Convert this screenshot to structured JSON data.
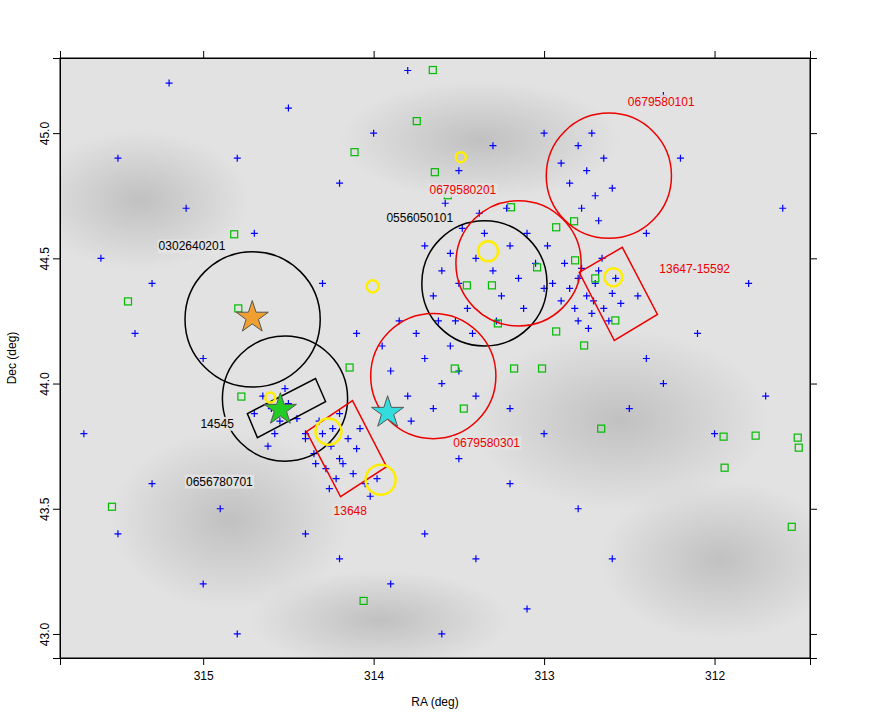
{
  "chart_data": {
    "type": "scatter",
    "x_label": "RA (deg)",
    "y_label": "Dec (deg)",
    "xlim": [
      315.84,
      311.44
    ],
    "ylim": [
      42.904,
      45.3
    ],
    "xticks": [
      315,
      314,
      313,
      312
    ],
    "yticks": [
      {
        "value": 43,
        "label": "43.0"
      },
      {
        "value": 43.5,
        "label": "43.5"
      },
      {
        "value": 44,
        "label": "44.0"
      },
      {
        "value": 44.5,
        "label": "44.5"
      },
      {
        "value": 45,
        "label": "45.0"
      }
    ],
    "series": [
      {
        "type": "scatter",
        "marker": "plus",
        "color": "#0000ff",
        "x": [
          312.7,
          312.75,
          312.8,
          312.65,
          312.72,
          312.85,
          312.6,
          312.78,
          312.68,
          312.9,
          312.62,
          312.74,
          312.82,
          312.55,
          312.88,
          312.95,
          312.66,
          312.71,
          312.58,
          312.8,
          314.3,
          314.25,
          314.2,
          314.35,
          314.28,
          314.15,
          314.22,
          314.32,
          314.18,
          314.26,
          314.1,
          314.4,
          314.24,
          314.12,
          314.05,
          314.02,
          313.98,
          314.34,
          314.2,
          314.08,
          314.6,
          314.55,
          314.5,
          314.65,
          314.58,
          314.45,
          314.7,
          314.52,
          314.62,
          314.4,
          313.4,
          313.3,
          313.5,
          313.2,
          313.35,
          313.45,
          313.25,
          313.55,
          313.15,
          313.38,
          313.6,
          313.28,
          313.1,
          313.48,
          313.05,
          313.22,
          313.65,
          313.42,
          313.0,
          313.33,
          313.58,
          313.7,
          313.12,
          312.98,
          313.52,
          312.75,
          312.7,
          312.8,
          312.65,
          312.85,
          312.6,
          312.78,
          312.9,
          312.72,
          312.68,
          313.7,
          313.6,
          313.8,
          313.75,
          313.55,
          313.9,
          313.65,
          313.85,
          313.5,
          313.95,
          313.78,
          313.62,
          315.2,
          315.5,
          315.1,
          315.6,
          315.4,
          315.7,
          315.3,
          315.5,
          315.0,
          314.8,
          314.5,
          314.2,
          314.0,
          313.8,
          314.3,
          314.1,
          313.7,
          313.9,
          313.6,
          313.4,
          313.2,
          313.0,
          312.8,
          312.5,
          312.3,
          312.1,
          312.4,
          312.2,
          311.8,
          311.6,
          312.6,
          313.1,
          314.7,
          315.0,
          314.9,
          313.5,
          312.0,
          311.7,
          312.3,
          313.0,
          313.3,
          313.5,
          314.4,
          314.2,
          315.3,
          312.45,
          312.4,
          313.2,
          313.4,
          314.8
        ],
        "values": [
          44.4,
          44.35,
          44.42,
          44.3,
          44.28,
          44.38,
          44.36,
          44.46,
          44.45,
          44.33,
          44.25,
          44.22,
          44.3,
          44.32,
          44.48,
          44.4,
          44.5,
          44.33,
          44.42,
          44.25,
          43.8,
          43.75,
          43.7,
          43.72,
          43.66,
          43.78,
          43.62,
          43.85,
          43.68,
          43.58,
          43.74,
          43.78,
          43.82,
          43.64,
          43.6,
          43.55,
          43.62,
          43.68,
          43.88,
          43.82,
          43.9,
          43.85,
          43.92,
          43.95,
          43.8,
          43.86,
          43.88,
          43.98,
          43.75,
          43.8,
          44.5,
          44.45,
          44.4,
          44.55,
          44.6,
          44.3,
          44.35,
          44.52,
          44.42,
          44.68,
          44.45,
          44.25,
          44.6,
          44.62,
          44.48,
          44.7,
          44.35,
          44.2,
          44.38,
          44.78,
          44.72,
          44.55,
          44.3,
          44.55,
          44.25,
          44.85,
          44.75,
          44.95,
          44.9,
          44.8,
          44.78,
          44.7,
          44.88,
          45.0,
          44.65,
          44.1,
          44.0,
          43.95,
          44.2,
          44.15,
          44.05,
          43.9,
          44.25,
          44.05,
          44.15,
          43.85,
          44.25,
          45.2,
          44.9,
          44.7,
          44.5,
          44.2,
          43.8,
          43.6,
          43.4,
          43.2,
          43.0,
          45.1,
          44.8,
          45.0,
          45.25,
          44.4,
          44.2,
          43.4,
          43.2,
          43.0,
          43.3,
          43.6,
          43.8,
          43.5,
          43.9,
          44.0,
          44.2,
          44.6,
          44.9,
          44.4,
          44.7,
          43.3,
          43.1,
          44.6,
          44.1,
          43.5,
          43.7,
          43.8,
          43.95,
          45.15,
          45.0,
          44.95,
          44.85,
          43.4,
          43.3,
          44.4,
          44.35,
          44.1,
          43.9,
          43.95,
          44.9
        ]
      },
      {
        "type": "scatter",
        "marker": "square",
        "color": "#00bb00",
        "x": [
          313.653,
          313.747,
          314.112,
          313.641,
          313.565,
          313.194,
          312.824,
          312.929,
          314.818,
          315.441,
          314.794,
          313.041,
          313.453,
          313.306,
          312.818,
          312.7,
          313.271,
          312.929,
          312.582,
          313.012,
          313.176,
          313.524,
          314.141,
          314.776,
          313.471,
          312.665,
          311.947,
          311.759,
          311.512,
          311.506,
          311.941,
          311.547,
          315.535,
          314.059,
          312.765
        ],
        "values": [
          45.252,
          45.048,
          44.924,
          44.844,
          44.752,
          44.704,
          44.648,
          44.624,
          44.596,
          44.328,
          44.3,
          44.464,
          44.392,
          44.392,
          44.492,
          44.42,
          44.24,
          44.208,
          44.252,
          44.06,
          44.06,
          44.06,
          44.064,
          43.948,
          43.9,
          43.82,
          43.788,
          43.792,
          43.784,
          43.744,
          43.664,
          43.428,
          43.508,
          43.132,
          44.152
        ]
      },
      {
        "type": "scatter",
        "marker": "star",
        "colors": [
          "#f0a030",
          "#22cc22",
          "#33dddd"
        ],
        "x": [
          314.712,
          314.547,
          313.918
        ],
        "values": [
          44.264,
          43.896,
          43.884
        ]
      },
      {
        "type": "circle",
        "color": "#ffee00",
        "x": [
          313.329,
          314.006,
          313.488,
          314.265,
          313.959,
          312.594,
          314.606
        ],
        "values": [
          44.528,
          44.388,
          44.904,
          43.808,
          43.616,
          44.424,
          43.944
        ],
        "radius": [
          0.04,
          0.024,
          0.02,
          0.052,
          0.06,
          0.036,
          0.02
        ]
      }
    ],
    "annotations": [
      {
        "type": "circle",
        "label": "0302640201",
        "color": "#000000",
        "x": 314.71,
        "y": 44.256,
        "radius": 0.27
      },
      {
        "type": "circle",
        "label": "0556050101",
        "color": "#000000",
        "x": 313.35,
        "y": 44.4,
        "radius": 0.25
      },
      {
        "type": "circle",
        "label": "0656780701",
        "color": "#000000",
        "x": 314.52,
        "y": 43.94,
        "radius": 0.25
      },
      {
        "type": "circle",
        "label": "0679580101",
        "color": "#ee0000",
        "x": 312.62,
        "y": 44.83,
        "radius": 0.25
      },
      {
        "type": "circle",
        "label": "0679580201",
        "color": "#ee0000",
        "x": 313.15,
        "y": 44.48,
        "radius": 0.25
      },
      {
        "type": "circle",
        "label": "0679580301",
        "color": "#ee0000",
        "x": 313.65,
        "y": 44.03,
        "radius": 0.25
      },
      {
        "type": "polygon",
        "label": "13647-15592",
        "color": "#ee0000",
        "x": [
          312.794,
          312.541,
          312.335,
          312.588
        ],
        "y": [
          44.444,
          44.544,
          44.276,
          44.172
        ]
      },
      {
        "type": "polygon",
        "label": "13648",
        "color": "#ee0000",
        "x": [
          314.394,
          314.124,
          313.924,
          314.194
        ],
        "y": [
          43.808,
          43.932,
          43.668,
          43.548
        ]
      },
      {
        "type": "polygon",
        "label": "14545",
        "color": "#000000",
        "x": [
          314.741,
          314.341,
          314.282,
          314.682
        ],
        "y": [
          43.88,
          44.02,
          43.928,
          43.784
        ]
      }
    ]
  }
}
